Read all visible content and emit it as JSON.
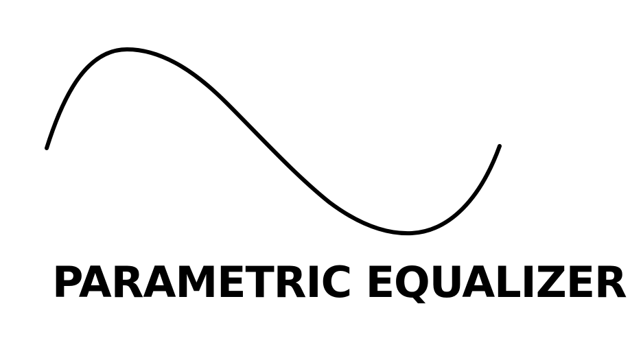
{
  "title": "PARAMETRIC EQUALIZER",
  "colors": {
    "background": "#ffffff",
    "ink": "#000000"
  },
  "icon": "sine-wave-curve"
}
